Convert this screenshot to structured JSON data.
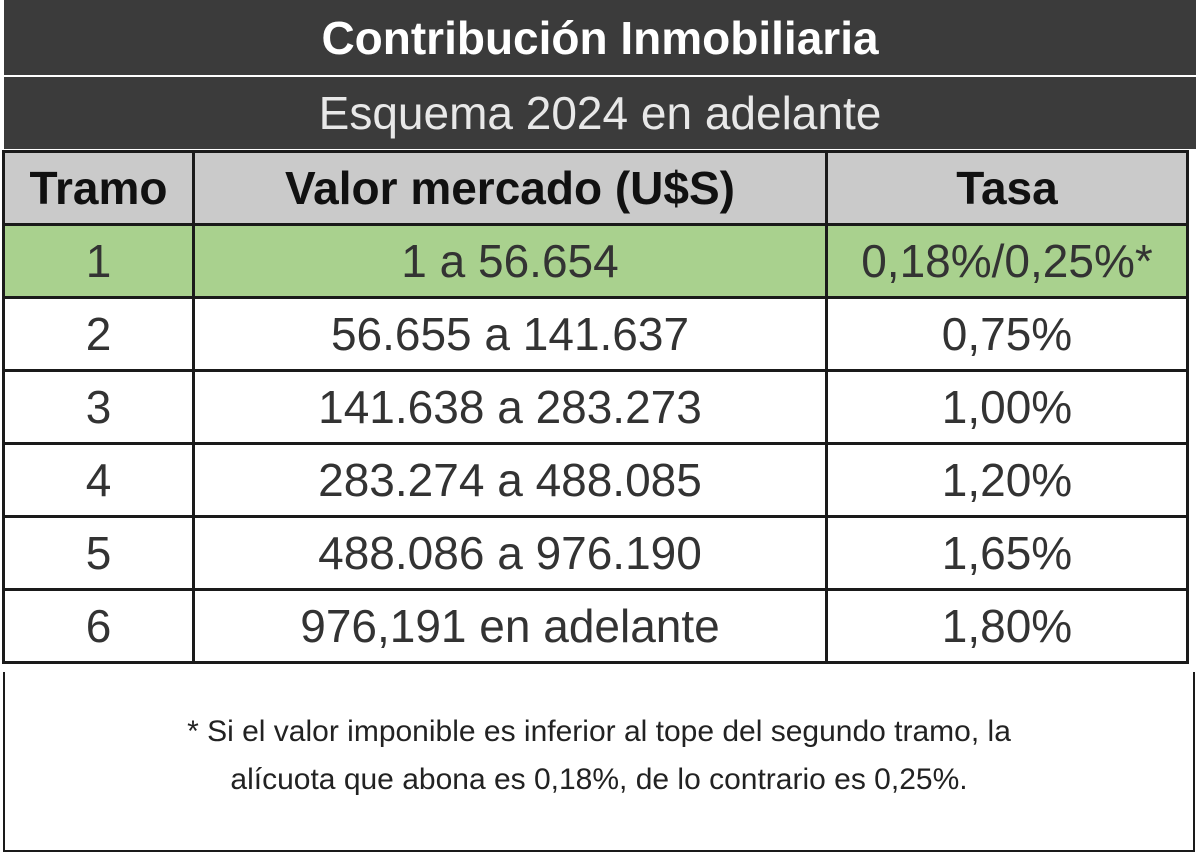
{
  "title": "Contribución Inmobiliaria",
  "subtitle": "Esquema 2024 en adelante",
  "table": {
    "headers": {
      "tramo": "Tramo",
      "valor": "Valor mercado (U$S)",
      "tasa": "Tasa"
    },
    "rows": [
      {
        "tramo": "1",
        "valor": "1 a 56.654",
        "tasa": "0,18%/0,25%*"
      },
      {
        "tramo": "2",
        "valor": "56.655 a 141.637",
        "tasa": "0,75%"
      },
      {
        "tramo": "3",
        "valor": "141.638 a 283.273",
        "tasa": "1,00%"
      },
      {
        "tramo": "4",
        "valor": "283.274 a 488.085",
        "tasa": "1,20%"
      },
      {
        "tramo": "5",
        "valor": "488.086 a 976.190",
        "tasa": "1,65%"
      },
      {
        "tramo": "6",
        "valor": "976,191 en adelante",
        "tasa": "1,80%"
      }
    ]
  },
  "note": {
    "line1": "* Si el valor imponible es inferior al tope del segundo tramo, la",
    "line2": "alícuota que abona es 0,18%, de lo contrario es 0,25%."
  },
  "colors": {
    "header_bar": "#3b3b3b",
    "column_header": "#cacaca",
    "highlight_row": "#a9d18e"
  }
}
